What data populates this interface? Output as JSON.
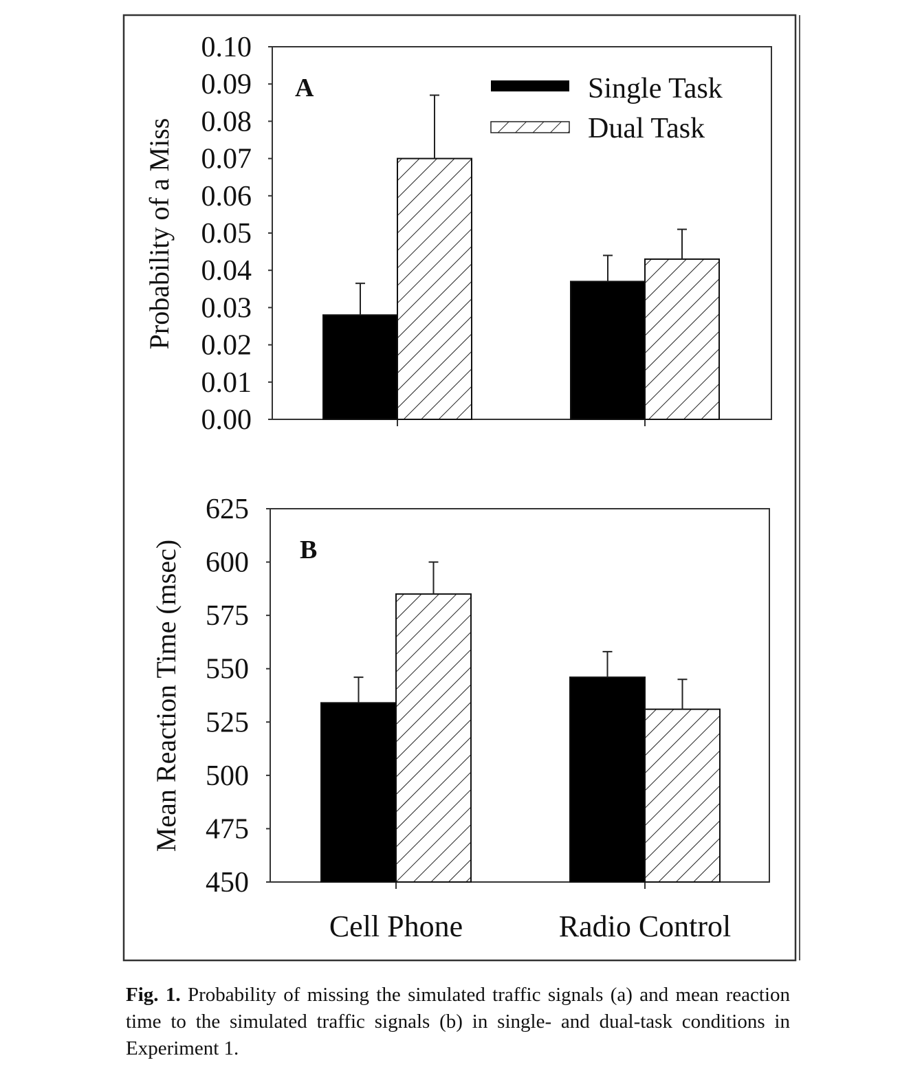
{
  "figure": {
    "caption_label": "Fig. 1.",
    "caption_text": "Probability of missing the simulated traffic signals (a) and mean reaction time to the simulated traffic signals (b) in single- and dual-task conditions in Experiment 1."
  },
  "legend": {
    "placement": "top-right of panel A",
    "items": [
      {
        "label": "Single Task",
        "style": "solid-black"
      },
      {
        "label": "Dual Task",
        "style": "diagonal-hatch"
      }
    ]
  },
  "colors": {
    "bar_fill": "#000000",
    "hatch": "#222222",
    "axis": "#333333",
    "background": "#ffffff"
  },
  "chart_data": [
    {
      "type": "bar",
      "panel_label": "A",
      "ylabel": "Probability of a Miss",
      "ylim": [
        0.0,
        0.1
      ],
      "yticks": [
        "0.00",
        "0.01",
        "0.02",
        "0.03",
        "0.04",
        "0.05",
        "0.06",
        "0.07",
        "0.08",
        "0.09",
        "0.10"
      ],
      "categories": [
        "Cell Phone",
        "Radio Control"
      ],
      "show_category_labels": false,
      "grid": false,
      "series": [
        {
          "name": "Single Task",
          "values": [
            0.028,
            0.037
          ],
          "error": [
            0.0085,
            0.007
          ]
        },
        {
          "name": "Dual Task",
          "values": [
            0.07,
            0.043
          ],
          "error": [
            0.017,
            0.008
          ]
        }
      ]
    },
    {
      "type": "bar",
      "panel_label": "B",
      "ylabel": "Mean Reaction Time (msec)",
      "ylim": [
        450,
        625
      ],
      "yticks": [
        "450",
        "475",
        "500",
        "525",
        "550",
        "575",
        "600",
        "625"
      ],
      "categories": [
        "Cell Phone",
        "Radio Control"
      ],
      "show_category_labels": true,
      "grid": false,
      "series": [
        {
          "name": "Single Task",
          "values": [
            534,
            546
          ],
          "error": [
            12,
            12
          ]
        },
        {
          "name": "Dual Task",
          "values": [
            585,
            531
          ],
          "error": [
            15,
            14
          ]
        }
      ]
    }
  ]
}
